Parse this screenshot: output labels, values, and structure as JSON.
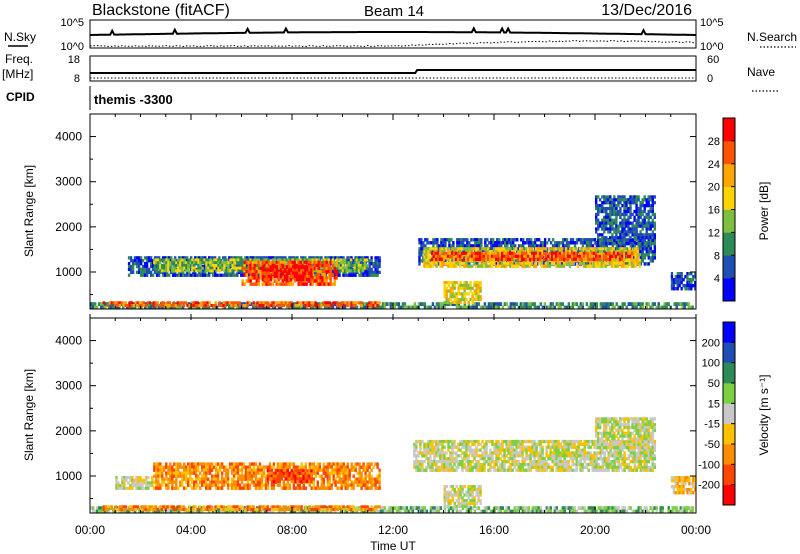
{
  "header": {
    "station": "Blackstone (fitACF)",
    "beam": "Beam 14",
    "date": "13/Dec/2016"
  },
  "noise_panel": {
    "left_label": "N.Sky",
    "right_label": "N.Search",
    "left_ticks": [
      "10^5",
      "10^0"
    ],
    "right_ticks": [
      "10^5",
      "10^0"
    ]
  },
  "freq_panel": {
    "left_label": "Freq.",
    "left_units": "[MHz]",
    "right_label": "Nave",
    "left_ticks": [
      "18",
      "8"
    ],
    "right_ticks": [
      "60",
      "0"
    ]
  },
  "cpid_panel": {
    "label": "CPID",
    "text": "themis -3300"
  },
  "colors": {
    "power": [
      "#0000ff",
      "#1f4fb4",
      "#2e8b57",
      "#7fbf3f",
      "#ffd400",
      "#ffa500",
      "#ff5500",
      "#ff0000"
    ],
    "velocity": [
      "#ff0000",
      "#ff4500",
      "#ff8c00",
      "#ffc000",
      "#c8c8c8",
      "#7bd13f",
      "#2e8b57",
      "#1f4fb4",
      "#0000ff"
    ]
  },
  "chart_data": [
    {
      "type": "heatmap",
      "title": "Power",
      "ylabel": "Slant Range [km]",
      "ylim": [
        180,
        4500
      ],
      "yticks": [
        "1000",
        "2000",
        "3000",
        "4000"
      ],
      "colorbar_label": "Power [dB]",
      "colorbar_ticks": [
        "4",
        "8",
        "12",
        "16",
        "20",
        "24",
        "28"
      ],
      "colorbar_range": [
        0,
        32
      ],
      "regions": [
        {
          "t0": 0.0,
          "t1": 23.9,
          "r0": 180,
          "r1": 330,
          "level": 2
        },
        {
          "t0": 0.5,
          "t1": 11.5,
          "r0": 230,
          "r1": 350,
          "level": 6
        },
        {
          "t0": 1.5,
          "t1": 11.5,
          "r0": 900,
          "r1": 1350,
          "level": 1
        },
        {
          "t0": 2.5,
          "t1": 11.0,
          "r0": 1000,
          "r1": 1300,
          "level": 3
        },
        {
          "t0": 6.0,
          "t1": 9.8,
          "r0": 700,
          "r1": 1250,
          "level": 6
        },
        {
          "t0": 6.8,
          "t1": 8.8,
          "r0": 800,
          "r1": 1150,
          "level": 7
        },
        {
          "t0": 13.0,
          "t1": 22.4,
          "r0": 1150,
          "r1": 1750,
          "level": 1
        },
        {
          "t0": 13.2,
          "t1": 21.8,
          "r0": 1100,
          "r1": 1550,
          "level": 4
        },
        {
          "t0": 13.5,
          "t1": 21.5,
          "r0": 1250,
          "r1": 1450,
          "level": 6
        },
        {
          "t0": 20.0,
          "t1": 22.4,
          "r0": 1600,
          "r1": 2700,
          "level": 1
        },
        {
          "t0": 14.0,
          "t1": 15.5,
          "r0": 300,
          "r1": 800,
          "level": 4
        },
        {
          "t0": 23.0,
          "t1": 24.0,
          "r0": 600,
          "r1": 1000,
          "level": 1
        }
      ]
    },
    {
      "type": "heatmap",
      "title": "Velocity",
      "ylabel": "Slant Range [km]",
      "ylim": [
        180,
        4500
      ],
      "yticks": [
        "1000",
        "2000",
        "3000",
        "4000"
      ],
      "xlabel": "Time UT",
      "xticks": [
        "00:00",
        "04:00",
        "08:00",
        "12:00",
        "16:00",
        "20:00",
        "00:00"
      ],
      "xlim": [
        0,
        24
      ],
      "colorbar_label": "Velocity [m s⁻¹]",
      "colorbar_ticks": [
        "-200",
        "-100",
        "-50",
        "-15",
        "15",
        "50",
        "100",
        "200"
      ],
      "colorbar_range": [
        -250,
        250
      ],
      "regions": [
        {
          "t0": 0.0,
          "t1": 23.9,
          "r0": 180,
          "r1": 330,
          "level": 5
        },
        {
          "t0": 0.5,
          "t1": 11.5,
          "r0": 230,
          "r1": 350,
          "level": 2
        },
        {
          "t0": 1.0,
          "t1": 2.5,
          "r0": 700,
          "r1": 1000,
          "level": 4
        },
        {
          "t0": 2.5,
          "t1": 11.5,
          "r0": 700,
          "r1": 1300,
          "level": 2
        },
        {
          "t0": 7.0,
          "t1": 8.8,
          "r0": 850,
          "r1": 1150,
          "level": 1
        },
        {
          "t0": 12.8,
          "t1": 22.4,
          "r0": 1100,
          "r1": 1800,
          "level": 4
        },
        {
          "t0": 14.0,
          "t1": 15.5,
          "r0": 300,
          "r1": 800,
          "level": 4
        },
        {
          "t0": 20.0,
          "t1": 22.4,
          "r0": 1600,
          "r1": 2300,
          "level": 4
        },
        {
          "t0": 23.0,
          "t1": 24.0,
          "r0": 600,
          "r1": 1000,
          "level": 3
        }
      ]
    }
  ]
}
